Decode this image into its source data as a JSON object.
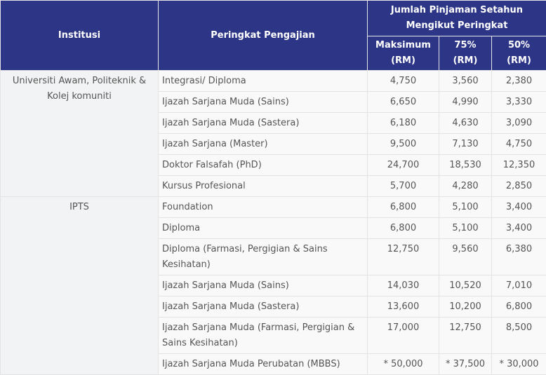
{
  "header": {
    "institution": "Institusi",
    "program_level": "Peringkat Pengajian",
    "loan_group": "Jumlah Pinjaman Setahun Mengikut Peringkat",
    "max": "Maksimum (RM)",
    "p75": "75% (RM)",
    "p50": "50% (RM)"
  },
  "colors": {
    "header_bg": "#2c3586",
    "header_text": "#ffffff",
    "body_text": "#555555",
    "grid": "#e3e3e3"
  },
  "groups": [
    {
      "institution": "Universiti Awam, Politeknik & Kolej komuniti",
      "rows": [
        {
          "program": "Integrasi/ Diploma",
          "max": "4,750",
          "p75": "3,560",
          "p50": "2,380"
        },
        {
          "program": "Ijazah Sarjana Muda (Sains)",
          "max": "6,650",
          "p75": "4,990",
          "p50": "3,330"
        },
        {
          "program": "Ijazah Sarjana Muda (Sastera)",
          "max": "6,180",
          "p75": "4,630",
          "p50": "3,090"
        },
        {
          "program": "Ijazah Sarjana (Master)",
          "max": "9,500",
          "p75": "7,130",
          "p50": "4,750"
        },
        {
          "program": "Doktor Falsafah (PhD)",
          "max": "24,700",
          "p75": "18,530",
          "p50": "12,350"
        },
        {
          "program": "Kursus Profesional",
          "max": "5,700",
          "p75": "4,280",
          "p50": "2,850"
        }
      ]
    },
    {
      "institution": "IPTS",
      "rows": [
        {
          "program": "Foundation",
          "max": "6,800",
          "p75": "5,100",
          "p50": "3,400"
        },
        {
          "program": "Diploma",
          "max": "6,800",
          "p75": "5,100",
          "p50": "3,400"
        },
        {
          "program": "Diploma (Farmasi, Pergigian & Sains Kesihatan)",
          "max": "12,750",
          "p75": "9,560",
          "p50": "6,380"
        },
        {
          "program": "Ijazah Sarjana Muda (Sains)",
          "max": "14,030",
          "p75": "10,520",
          "p50": "7,010"
        },
        {
          "program": "Ijazah Sarjana Muda (Sastera)",
          "max": "13,600",
          "p75": "10,200",
          "p50": "6,800"
        },
        {
          "program": "Ijazah Sarjana Muda (Farmasi, Pergigian & Sains Kesihatan)",
          "max": "17,000",
          "p75": "12,750",
          "p50": "8,500"
        },
        {
          "program": "Ijazah Sarjana Muda Perubatan (MBBS)",
          "max": "* 50,000",
          "p75": "* 37,500",
          "p50": "* 30,000"
        }
      ]
    }
  ]
}
